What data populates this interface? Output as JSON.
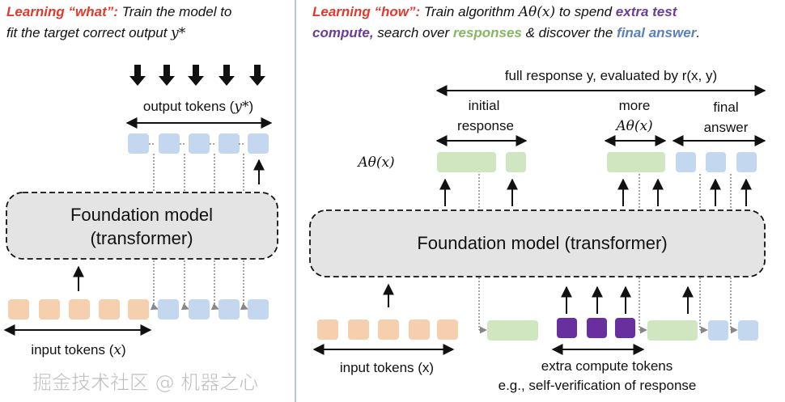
{
  "left": {
    "header": {
      "lead": "Learning “what”:",
      "line1": " Train the model to",
      "line2": "fit the target correct output ",
      "target": "y*"
    },
    "output_label": "output tokens (",
    "output_var": "y*",
    "output_close": ")",
    "model_line1": "Foundation model",
    "model_line2": "(transformer)",
    "input_label": "input tokens (",
    "input_var": "x",
    "input_close": ")"
  },
  "right": {
    "header": {
      "lead": "Learning “how”:",
      "t1": " Train algorithm ",
      "alg": "Aθ(x)",
      "t2": " to spend ",
      "extra": "extra test",
      "compute": "compute,",
      "t3": " search over ",
      "responses": "responses",
      "t4": " & discover the ",
      "final": "final answer",
      "t5": "."
    },
    "full_response": "full response y, evaluated by r(x, y)",
    "initial1": "initial",
    "initial2": "response",
    "more1": "more",
    "more2": "Aθ(x)",
    "final1": "final",
    "final2": "answer",
    "alg_label": "Aθ(x)",
    "model": "Foundation model (transformer)",
    "input_label": "input tokens (x)",
    "extra1": "extra compute tokens",
    "extra2": "e.g., self-verification of response"
  },
  "watermark": "掘金技术社区 @ 机器之心",
  "colors": {
    "red": "#e03a2e",
    "purple": "#6a3d9a",
    "green": "#86b862",
    "blue": "#5a7fc0",
    "token_orange": "#f6cfae",
    "token_blue": "#c3d8ef",
    "token_green": "#cfe6c0",
    "token_purple": "#6a2f9f",
    "model_fill": "#e4e4e4",
    "divider": "#9bb3d6"
  }
}
